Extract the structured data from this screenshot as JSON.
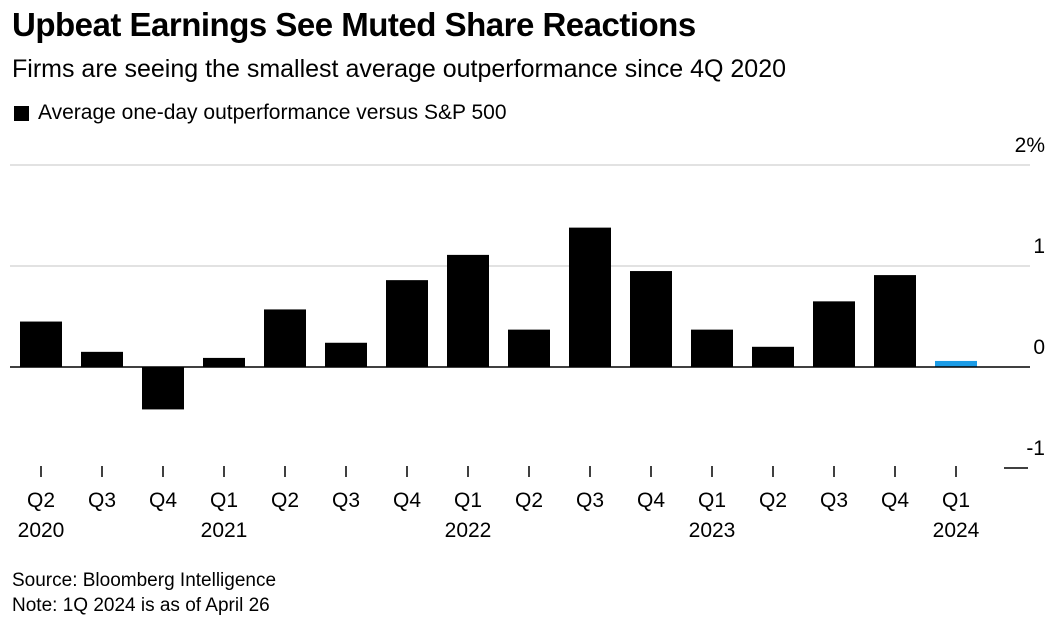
{
  "title": "Upbeat Earnings See Muted Share Reactions",
  "subtitle": "Firms are seeing the smallest average outperformance since 4Q 2020",
  "legend_label": "Average one-day outperformance versus S&P 500",
  "source": "Source: Bloomberg Intelligence",
  "note": "Note: 1Q 2024 is as of April 26",
  "colors": {
    "bar": "#000000",
    "highlight": "#1a9be6",
    "grid": "#d9d9d9",
    "zero": "#000000"
  },
  "chart_data": {
    "type": "bar",
    "ylim": [
      -1,
      2
    ],
    "yticks": [
      {
        "value": 2,
        "label": "2%"
      },
      {
        "value": 1,
        "label": "1"
      },
      {
        "value": 0,
        "label": "0"
      },
      {
        "value": -1,
        "label": "-1"
      }
    ],
    "grid": true,
    "categories": [
      "Q2",
      "Q3",
      "Q4",
      "Q1",
      "Q2",
      "Q3",
      "Q4",
      "Q1",
      "Q2",
      "Q3",
      "Q4",
      "Q1",
      "Q2",
      "Q3",
      "Q4",
      "Q1"
    ],
    "years": [
      "2020",
      "",
      "",
      "2021",
      "",
      "",
      "",
      "2022",
      "",
      "",
      "",
      "2023",
      "",
      "",
      "",
      "2024"
    ],
    "series": [
      {
        "name": "Average one-day outperformance versus S&P 500",
        "values": [
          0.45,
          0.15,
          -0.42,
          0.09,
          0.57,
          0.24,
          0.86,
          1.11,
          0.37,
          1.38,
          0.95,
          0.37,
          0.2,
          0.65,
          0.91,
          0.06
        ]
      }
    ],
    "highlight_index": 15
  }
}
